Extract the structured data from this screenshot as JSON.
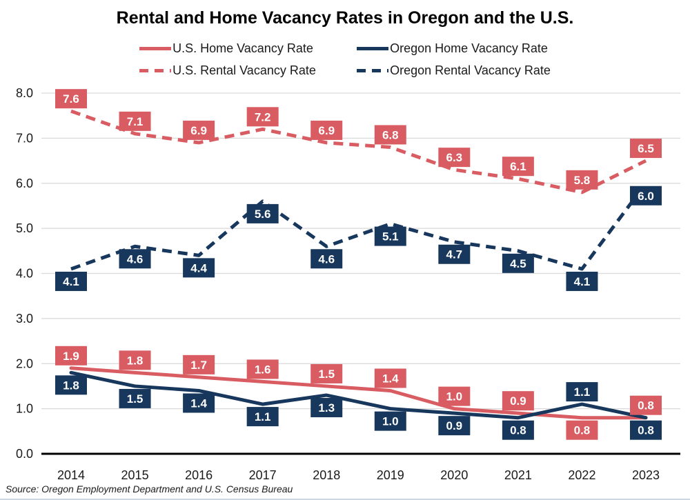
{
  "title": "Rental and Home Vacancy Rates in Oregon and the U.S.",
  "source_note": "Source: Oregon Employment Department and U.S. Census Bureau",
  "colors": {
    "us_series": "#D85C62",
    "oregon_series": "#17375D",
    "gridline": "#D9D9D9",
    "axis": "#000000",
    "tick_text": "#1a1a1a",
    "data_label_text": "#FFFFFF"
  },
  "chart_data": {
    "type": "line",
    "title": "Rental and Home Vacancy Rates in Oregon and the U.S.",
    "x_labels": [
      "2014",
      "2015",
      "2016",
      "2017",
      "2018",
      "2019",
      "2020",
      "2021",
      "2022",
      "2023"
    ],
    "ylim": [
      0.0,
      8.0
    ],
    "y_tick_step": 1.0,
    "y_tick_labels": [
      "0.0",
      "1.0",
      "2.0",
      "3.0",
      "4.0",
      "5.0",
      "6.0",
      "7.0",
      "8.0"
    ],
    "grid": "horizontal",
    "legend_position": "top",
    "series": [
      {
        "name": "U.S. Home Vacancy Rate",
        "color": "#D85C62",
        "style": "solid",
        "values": [
          1.9,
          1.8,
          1.7,
          1.6,
          1.5,
          1.4,
          1.0,
          0.9,
          0.8,
          0.8
        ],
        "point_labels": [
          "1.9",
          "1.8",
          "1.7",
          "1.6",
          "1.5",
          "1.4",
          "1.0",
          "0.9",
          "0.8",
          "0.8"
        ],
        "label_sides": [
          "above",
          "above",
          "above",
          "above",
          "above",
          "above",
          "above",
          "above",
          "below",
          "above"
        ]
      },
      {
        "name": "Oregon Home Vacancy Rate",
        "color": "#17375D",
        "style": "solid",
        "values": [
          1.8,
          1.5,
          1.4,
          1.1,
          1.3,
          1.0,
          0.9,
          0.8,
          1.1,
          0.8
        ],
        "point_labels": [
          "1.8",
          "1.5",
          "1.4",
          "1.1",
          "1.3",
          "1.0",
          "0.9",
          "0.8",
          "1.1",
          "0.8"
        ],
        "label_sides": [
          "below",
          "below",
          "below",
          "below",
          "below",
          "below",
          "below",
          "below",
          "above",
          "below"
        ]
      },
      {
        "name": "U.S. Rental Vacancy Rate",
        "color": "#D85C62",
        "style": "dashed",
        "values": [
          7.6,
          7.1,
          6.9,
          7.2,
          6.9,
          6.8,
          6.3,
          6.1,
          5.8,
          6.5
        ],
        "point_labels": [
          "7.6",
          "7.1",
          "6.9",
          "7.2",
          "6.9",
          "6.8",
          "6.3",
          "6.1",
          "5.8",
          "6.5"
        ],
        "label_sides": [
          "above",
          "above",
          "above",
          "above",
          "above",
          "above",
          "above",
          "above",
          "above",
          "above"
        ]
      },
      {
        "name": "Oregon Rental Vacancy Rate",
        "color": "#17375D",
        "style": "dashed",
        "values": [
          4.1,
          4.6,
          4.4,
          5.6,
          4.6,
          5.1,
          4.7,
          4.5,
          4.1,
          6.0
        ],
        "point_labels": [
          "4.1",
          "4.6",
          "4.4",
          "5.6",
          "4.6",
          "5.1",
          "4.7",
          "4.5",
          "4.1",
          "6.0"
        ],
        "label_sides": [
          "below",
          "below",
          "below",
          "below",
          "below",
          "below",
          "below",
          "below",
          "below",
          "below"
        ]
      }
    ]
  }
}
